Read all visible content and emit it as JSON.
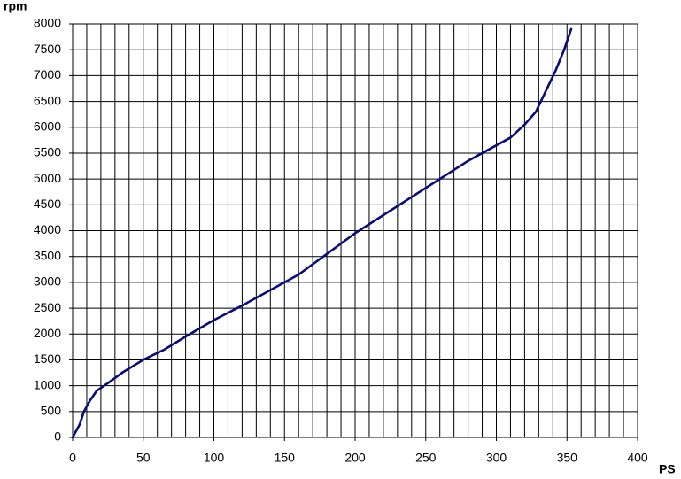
{
  "chart_data": {
    "type": "line",
    "y_title": "rpm",
    "x_title": "PS",
    "x": [
      0,
      5,
      8,
      12,
      17,
      25,
      35,
      50,
      65,
      80,
      100,
      120,
      140,
      160,
      180,
      200,
      220,
      240,
      260,
      280,
      300,
      310,
      320,
      328,
      335,
      342,
      348,
      353
    ],
    "values": [
      0,
      250,
      500,
      700,
      900,
      1050,
      1250,
      1500,
      1700,
      1950,
      2270,
      2550,
      2850,
      3150,
      3550,
      3950,
      4300,
      4650,
      5000,
      5350,
      5650,
      5800,
      6050,
      6300,
      6700,
      7100,
      7500,
      7900
    ],
    "color": "#0b0b78",
    "xlim": [
      0,
      400
    ],
    "ylim": [
      0,
      8000
    ],
    "xticks": [
      0,
      50,
      100,
      150,
      200,
      250,
      300,
      350,
      400
    ],
    "xminor": [
      0,
      10,
      20,
      30,
      40,
      50,
      60,
      70,
      80,
      90,
      100,
      110,
      120,
      130,
      140,
      150,
      160,
      170,
      180,
      190,
      200,
      210,
      220,
      230,
      240,
      250,
      260,
      270,
      280,
      290,
      300,
      310,
      320,
      330,
      340,
      350,
      360,
      370,
      380,
      390,
      400
    ],
    "yticks": [
      0,
      500,
      1000,
      1500,
      2000,
      2500,
      3000,
      3500,
      4000,
      4500,
      5000,
      5500,
      6000,
      6500,
      7000,
      7500,
      8000
    ],
    "grid": true
  }
}
